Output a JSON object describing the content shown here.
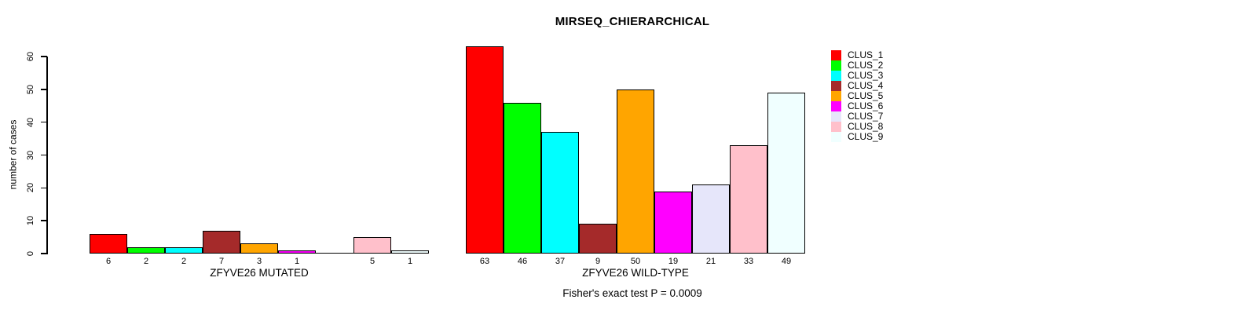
{
  "chart_data": {
    "type": "bar",
    "title": "MIRSEQ_CHIERARCHICAL",
    "ylabel": "number of cases",
    "ylim": [
      0,
      60
    ],
    "yticks": [
      0,
      10,
      20,
      30,
      40,
      50,
      60
    ],
    "categories": [
      "ZFYVE26 MUTATED",
      "ZFYVE26 WILD-TYPE"
    ],
    "series": [
      {
        "name": "CLUS_1",
        "color": "#FF0000",
        "values": [
          6,
          63
        ]
      },
      {
        "name": "CLUS_2",
        "color": "#00FF00",
        "values": [
          2,
          46
        ]
      },
      {
        "name": "CLUS_3",
        "color": "#00FFFF",
        "values": [
          2,
          37
        ]
      },
      {
        "name": "CLUS_4",
        "color": "#A52A2A",
        "values": [
          7,
          9
        ]
      },
      {
        "name": "CLUS_5",
        "color": "#FFA500",
        "values": [
          3,
          50
        ]
      },
      {
        "name": "CLUS_6",
        "color": "#FF00FF",
        "values": [
          1,
          19
        ]
      },
      {
        "name": "CLUS_7",
        "color": "#E6E6FA",
        "values": [
          0,
          21
        ]
      },
      {
        "name": "CLUS_8",
        "color": "#FFC0CB",
        "values": [
          5,
          33
        ]
      },
      {
        "name": "CLUS_9",
        "color": "#F0FFFF",
        "values": [
          1,
          49
        ]
      }
    ],
    "annotation": "Fisher's exact test P = 0.0009",
    "legend_position": "top-right",
    "bar_border_color": "#000000",
    "grid": false,
    "zero_value_bars_drawn_as_line": true,
    "zero_value_labels_hidden": true
  }
}
